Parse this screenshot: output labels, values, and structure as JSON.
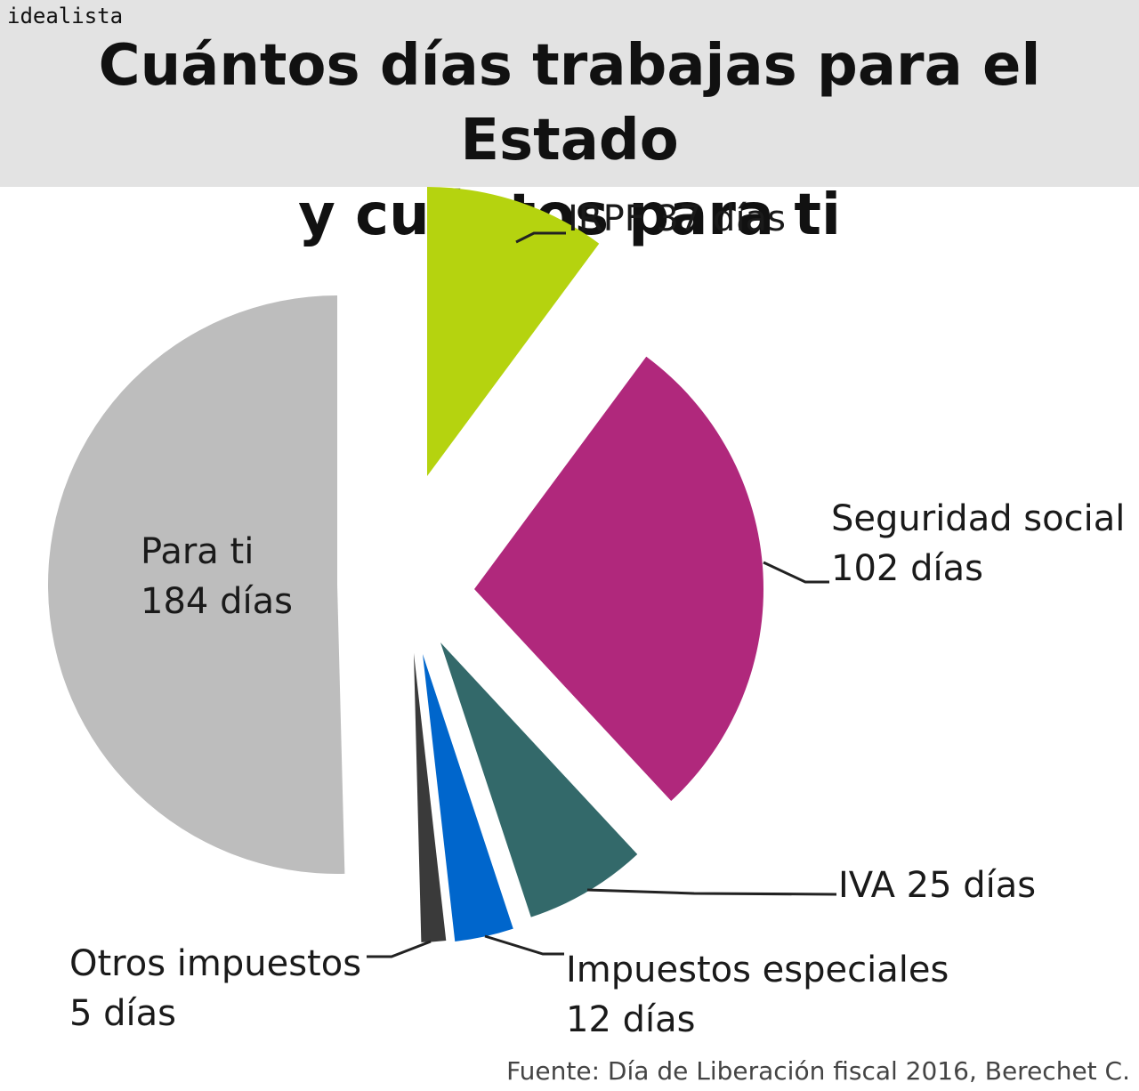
{
  "brand": "idealista",
  "title_lines": [
    "Cuántos días trabajas para el Estado",
    "y cuántos para ti"
  ],
  "source": "Fuente: Día de Liberación fiscal 2016, Berechet C.",
  "chart_data": {
    "type": "pie",
    "title": "Cuántos días trabajas para el Estado y cuántos para ti",
    "unit": "días",
    "slices": [
      {
        "name": "IRPF",
        "value": 37,
        "color": "#b5d30f",
        "label_lines": [
          "IRPF 37 días"
        ]
      },
      {
        "name": "Seguridad social",
        "value": 102,
        "color": "#b0287c",
        "label_lines": [
          "Seguridad social",
          "102 días"
        ]
      },
      {
        "name": "IVA",
        "value": 25,
        "color": "#33696a",
        "label_lines": [
          "IVA 25 días"
        ]
      },
      {
        "name": "Impuestos especiales",
        "value": 12,
        "color": "#0066cc",
        "label_lines": [
          "Impuestos especiales",
          "12 días"
        ]
      },
      {
        "name": "Otros impuestos",
        "value": 5,
        "color": "#3a3a3a",
        "label_lines": [
          "Otros impuestos",
          "5 días"
        ]
      },
      {
        "name": "Para ti",
        "value": 184,
        "color": "#bdbdbd",
        "label_lines": [
          "Para ti",
          "184 días"
        ]
      }
    ]
  }
}
